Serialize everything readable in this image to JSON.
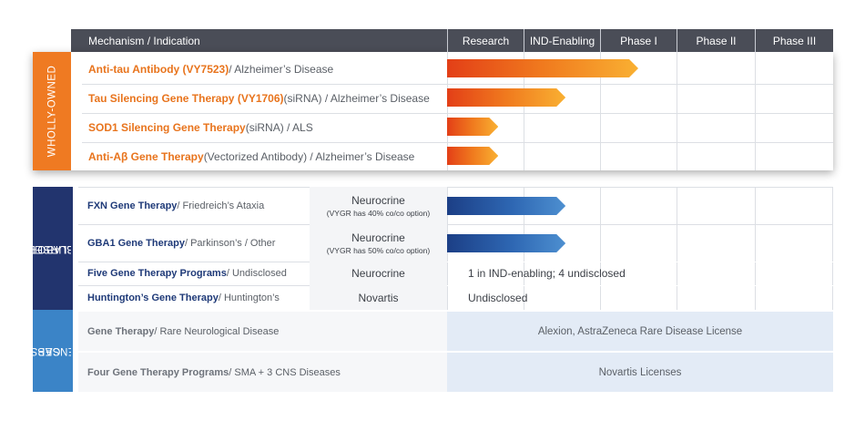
{
  "header": {
    "mechanism_label": "Mechanism / Indication",
    "phases": [
      "Research",
      "IND-Enabling",
      "Phase I",
      "Phase II",
      "Phase III"
    ]
  },
  "sections": {
    "wholly_owned": "WHOLLY-OWNED",
    "collaborations": [
      "COLLABORATIONS",
      "(REIMBURSED)"
    ],
    "capsid": [
      "CAPSID",
      "LICENSES"
    ]
  },
  "wholly_owned_rows": [
    {
      "name": "Anti-tau Antibody (VY7523)",
      "detail": " / Alzheimer’s Disease",
      "progress_phase": 2.5
    },
    {
      "name": "Tau Silencing Gene Therapy (VY1706)",
      "detail": " (siRNA) / Alzheimer’s Disease",
      "progress_phase": 1.55
    },
    {
      "name": "SOD1 Silencing Gene Therapy",
      "detail": " (siRNA) / ALS",
      "progress_phase": 0.67
    },
    {
      "name": "Anti-Aβ Gene Therapy",
      "detail": " (Vectorized Antibody) / Alzheimer’s Disease",
      "progress_phase": 0.67
    }
  ],
  "collaboration_rows": [
    {
      "name": "FXN Gene Therapy",
      "detail": " / Friedreich’s Ataxia",
      "partner": "Neurocrine",
      "partner_note": "(VYGR has 40% co/co option)",
      "status": "",
      "progress_phase": 1.55
    },
    {
      "name": "GBA1 Gene Therapy",
      "detail": " / Parkinson’s / Other",
      "partner": "Neurocrine",
      "partner_note": "(VYGR has 50% co/co option)",
      "status": "",
      "progress_phase": 1.55
    },
    {
      "name": "Five Gene Therapy Programs",
      "detail": " / Undisclosed",
      "partner": "Neurocrine",
      "partner_note": "",
      "status": "1 in IND-enabling; 4 undisclosed"
    },
    {
      "name": "Huntington’s Gene Therapy",
      "detail": " / Huntington’s",
      "partner": "Novartis",
      "partner_note": "",
      "status": "Undisclosed"
    }
  ],
  "capsid_rows": [
    {
      "name": "Gene Therapy",
      "detail": " / Rare Neurological Disease",
      "license": "Alexion, AstraZeneca Rare Disease License"
    },
    {
      "name": "Four Gene Therapy Programs",
      "detail": " / SMA + 3 CNS Diseases",
      "license": "Novartis Licenses"
    }
  ],
  "colors": {
    "orange": "#ef7a22",
    "navy": "#22346e",
    "blue": "#3b84c7",
    "header": "#4a4d57",
    "license_bg": "#e3ebf6"
  }
}
